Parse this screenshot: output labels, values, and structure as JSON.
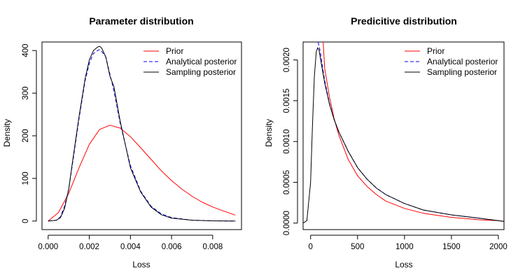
{
  "colors": {
    "prior": "#ff0000",
    "analytical_posterior": "#0000ff",
    "sampling_posterior": "#000000"
  },
  "chart_data": [
    {
      "type": "line",
      "title": "Parameter distribution",
      "xlabel": "Loss",
      "ylabel": "Density",
      "xlim": [
        -0.0003,
        0.0094
      ],
      "ylim": [
        -20,
        420
      ],
      "xticks": [
        0.0,
        0.002,
        0.004,
        0.006,
        0.008
      ],
      "xtick_labels": [
        "0.000",
        "0.002",
        "0.004",
        "0.006",
        "0.008"
      ],
      "yticks": [
        0,
        100,
        200,
        300,
        400
      ],
      "ytick_labels": [
        "0",
        "100",
        "200",
        "300",
        "400"
      ],
      "legend_position": "top-right",
      "series": [
        {
          "name": "Prior",
          "color": "#ff0000",
          "dash": "solid",
          "x": [
            0.0,
            0.0005,
            0.001,
            0.0015,
            0.002,
            0.0025,
            0.003,
            0.0035,
            0.004,
            0.0045,
            0.005,
            0.0055,
            0.006,
            0.0065,
            0.007,
            0.0075,
            0.008,
            0.0085,
            0.0091
          ],
          "y": [
            0,
            20,
            65,
            125,
            180,
            215,
            225,
            218,
            198,
            172,
            145,
            118,
            95,
            75,
            58,
            44,
            33,
            24,
            14
          ]
        },
        {
          "name": "Analytical posterior",
          "color": "#0000ff",
          "dash": "dashed",
          "x": [
            0.0,
            0.0004,
            0.0006,
            0.0008,
            0.001,
            0.0012,
            0.0015,
            0.0018,
            0.002,
            0.0022,
            0.0024,
            0.0025,
            0.0026,
            0.0028,
            0.003,
            0.0032,
            0.0035,
            0.004,
            0.0045,
            0.005,
            0.0055,
            0.006,
            0.007,
            0.008,
            0.0091
          ],
          "y": [
            0,
            2,
            10,
            35,
            75,
            140,
            240,
            330,
            370,
            393,
            400,
            402,
            398,
            385,
            345,
            305,
            230,
            130,
            70,
            35,
            17,
            8,
            2,
            0.5,
            0
          ]
        },
        {
          "name": "Sampling posterior",
          "color": "#000000",
          "dash": "solid",
          "x": [
            0.0,
            0.0004,
            0.0006,
            0.0008,
            0.001,
            0.0012,
            0.0015,
            0.0018,
            0.002,
            0.0022,
            0.0024,
            0.0025,
            0.0026,
            0.0028,
            0.003,
            0.0032,
            0.0035,
            0.004,
            0.0045,
            0.005,
            0.0055,
            0.006,
            0.007,
            0.008,
            0.0091
          ],
          "y": [
            0,
            2,
            8,
            30,
            75,
            145,
            245,
            335,
            378,
            400,
            408,
            410,
            406,
            385,
            340,
            315,
            235,
            125,
            68,
            33,
            15,
            7,
            2,
            0.5,
            0
          ]
        }
      ]
    },
    {
      "type": "line",
      "title": "Predicitive distribution",
      "xlabel": "Loss",
      "ylabel": "Density",
      "xlim": [
        -80,
        2060
      ],
      "ylim": [
        -8e-05,
        0.00222
      ],
      "xticks": [
        0,
        500,
        1000,
        1500,
        2000
      ],
      "xtick_labels": [
        "0",
        "500",
        "1000",
        "1500",
        "2000"
      ],
      "yticks": [
        0.0,
        0.0005,
        0.001,
        0.0015,
        0.002
      ],
      "ytick_labels": [
        "0.0000",
        "0.0005",
        "0.0010",
        "0.0015",
        "0.0020"
      ],
      "legend_position": "top-right",
      "series": [
        {
          "name": "Prior",
          "color": "#ff0000",
          "dash": "solid",
          "x": [
            125,
            150,
            200,
            250,
            300,
            400,
            500,
            600,
            700,
            800,
            1000,
            1200,
            1500,
            1800,
            2000,
            2060
          ],
          "y": [
            0.0024,
            0.0019,
            0.00155,
            0.00128,
            0.00108,
            0.00078,
            0.00058,
            0.00045,
            0.00035,
            0.00027,
            0.00018,
            0.00012,
            7e-05,
            4e-05,
            3e-05,
            2e-05
          ]
        },
        {
          "name": "Analytical posterior",
          "color": "#0000ff",
          "dash": "dashed",
          "x": [
            80,
            100,
            150,
            200,
            250,
            300,
            400,
            500,
            600,
            700,
            800,
            1000,
            1200,
            1500,
            1800,
            2000,
            2060
          ],
          "y": [
            0.00222,
            0.00212,
            0.00175,
            0.00147,
            0.00127,
            0.00112,
            0.00088,
            0.00068,
            0.00054,
            0.00043,
            0.00035,
            0.00024,
            0.00016,
            0.0001,
            6e-05,
            3e-05,
            2e-05
          ]
        },
        {
          "name": "Sampling posterior",
          "color": "#000000",
          "dash": "solid",
          "x": [
            -80,
            -40,
            0,
            20,
            40,
            60,
            75,
            90,
            110,
            150,
            200,
            250,
            300,
            400,
            500,
            600,
            700,
            800,
            1000,
            1200,
            1500,
            1800,
            2000,
            2060
          ],
          "y": [
            0,
            3e-05,
            0.0005,
            0.0012,
            0.0018,
            0.0021,
            0.00215,
            0.00212,
            0.00198,
            0.00172,
            0.00146,
            0.00127,
            0.00112,
            0.00088,
            0.00068,
            0.00054,
            0.00043,
            0.00035,
            0.00024,
            0.00016,
            0.0001,
            6e-05,
            3e-05,
            2e-05
          ]
        }
      ]
    }
  ]
}
